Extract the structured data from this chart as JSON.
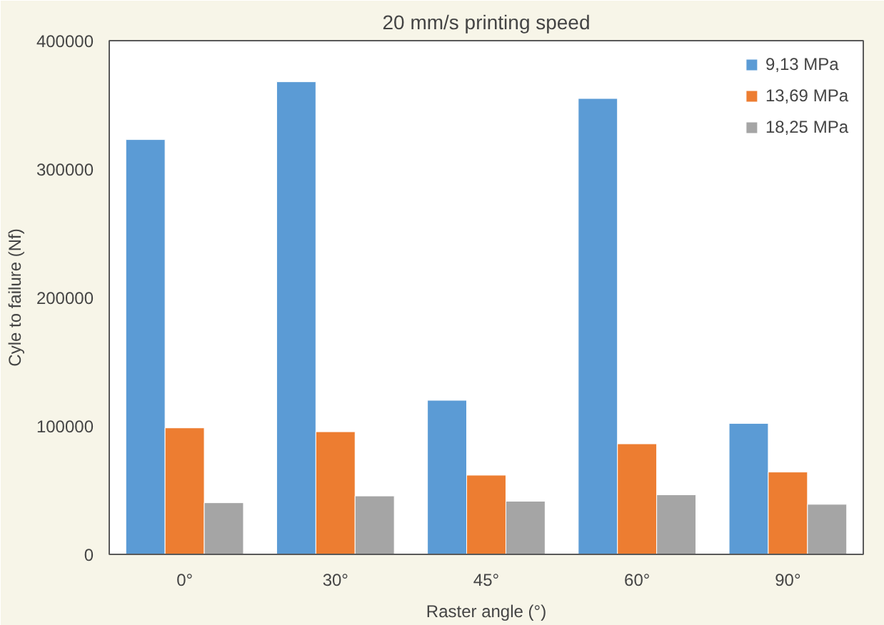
{
  "chart_data": {
    "type": "bar",
    "title": "20 mm/s printing speed",
    "xlabel": "Raster angle (°)",
    "ylabel": "Cyle to failure (Nf)",
    "categories": [
      "0°",
      "30°",
      "45°",
      "60°",
      "90°"
    ],
    "series": [
      {
        "name": "9,13 MPa",
        "color": "#5b9bd5",
        "values": [
          323000,
          368000,
          120000,
          355000,
          102000
        ]
      },
      {
        "name": "13,69 MPa",
        "color": "#ed7d31",
        "values": [
          98500,
          95500,
          61700,
          86100,
          64100
        ]
      },
      {
        "name": "18,25 MPa",
        "color": "#a5a5a5",
        "values": [
          40200,
          45500,
          41400,
          46400,
          39000
        ]
      }
    ],
    "ylim": [
      0,
      400000
    ],
    "yticks": [
      0,
      100000,
      200000,
      300000,
      400000
    ],
    "grid": false,
    "legend": "top right"
  }
}
